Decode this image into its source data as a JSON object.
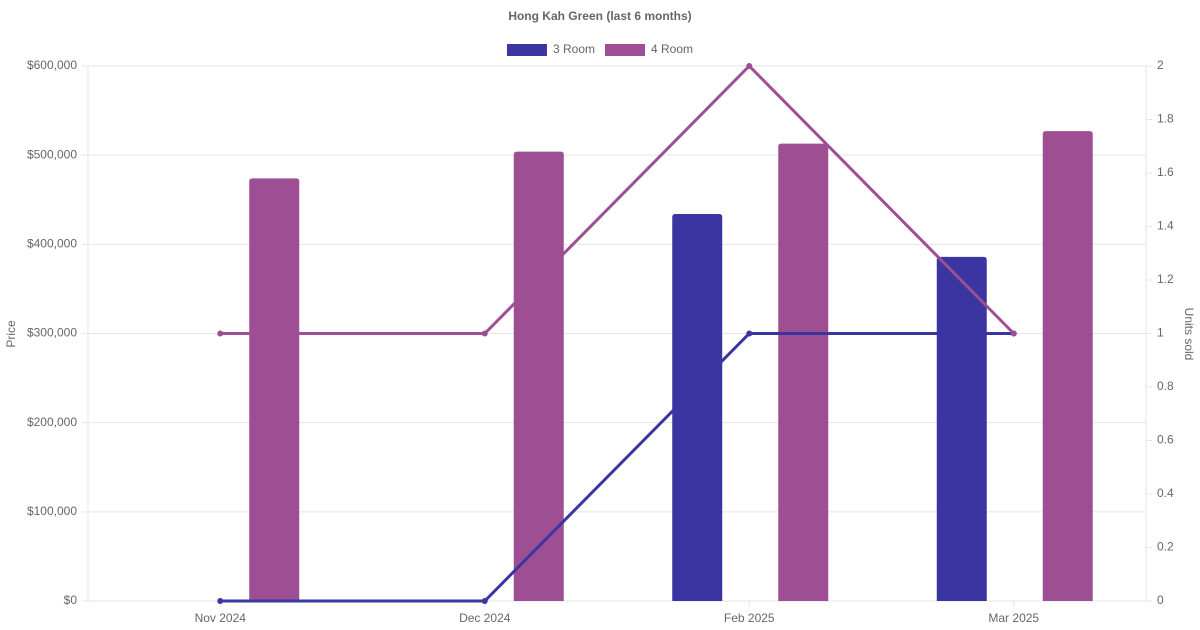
{
  "chart_data": {
    "type": "bar-line",
    "title": "Hong Kah Green (last 6 months)",
    "categories": [
      "Nov 2024",
      "Dec 2024",
      "Feb 2025",
      "Mar 2025"
    ],
    "series": [
      {
        "name": "3 Room",
        "color": "#3a35a0",
        "values": [
          null,
          null,
          434000,
          386000
        ],
        "y2_values": [
          0,
          0,
          1,
          1
        ]
      },
      {
        "name": "4 Room",
        "color": "#9e4f94",
        "values": [
          474000,
          504000,
          513000,
          527000
        ],
        "y2_values": [
          1,
          1,
          2,
          1
        ]
      }
    ],
    "ylabel": "Price",
    "y2label": "Units sold",
    "ylim": [
      0,
      600000
    ],
    "yticks": [
      {
        "value": 0,
        "label": "$0"
      },
      {
        "value": 100000,
        "label": "$100,000"
      },
      {
        "value": 200000,
        "label": "$200,000"
      },
      {
        "value": 300000,
        "label": "$300,000"
      },
      {
        "value": 400000,
        "label": "$400,000"
      },
      {
        "value": 500000,
        "label": "$500,000"
      },
      {
        "value": 600000,
        "label": "$600,000"
      }
    ],
    "y2lim": [
      0,
      2
    ],
    "y2ticks": [
      0,
      0.2,
      0.4,
      0.6,
      0.8,
      1,
      1.2,
      1.4,
      1.6,
      1.8,
      2
    ],
    "grid": true,
    "legend": "top"
  }
}
